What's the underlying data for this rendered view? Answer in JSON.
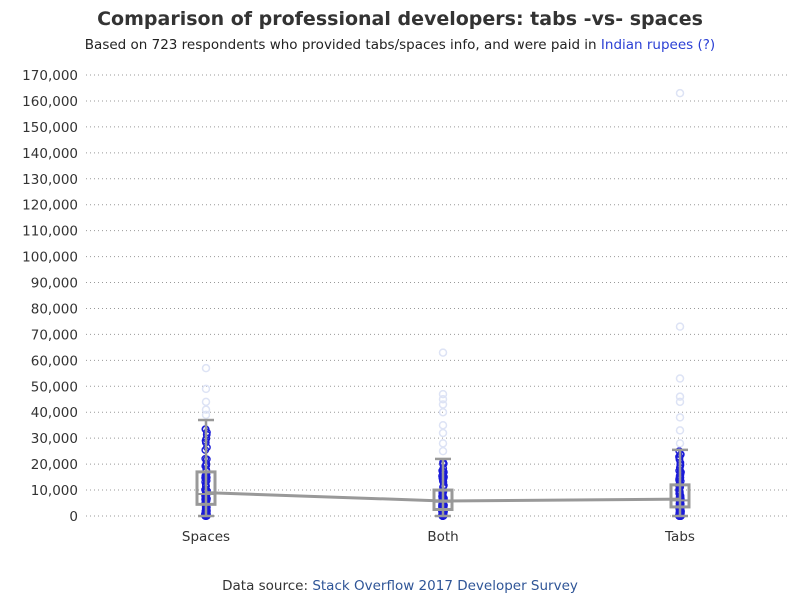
{
  "colors": {
    "points": "#1a1ad8",
    "outliers": "#dde3f5",
    "box": "#999999",
    "grid": "#999999",
    "link": "#2a3fd4"
  },
  "title": "Comparison of professional developers: tabs -vs- spaces",
  "subtitle": {
    "text": "Based on 723 respondents who provided tabs/spaces info, and were paid in",
    "link": "Indian rupees (?)"
  },
  "footer": {
    "prefix": "Data source:",
    "link": "Stack Overflow 2017 Developer Survey"
  },
  "chart_data": {
    "type": "box",
    "title": "Comparison of professional developers: tabs -vs- spaces",
    "subtitle": "Based on 723 respondents who provided tabs/spaces info, and were paid in Indian rupees (?)",
    "xlabel": "",
    "ylabel": "",
    "categories": [
      "Spaces",
      "Both",
      "Tabs"
    ],
    "ylim": [
      0,
      170000
    ],
    "ytick_step": 10000,
    "ytick_labels": [
      "0",
      "10,000",
      "20,000",
      "30,000",
      "40,000",
      "50,000",
      "60,000",
      "70,000",
      "80,000",
      "90,000",
      "100,000",
      "110,000",
      "120,000",
      "130,000",
      "140,000",
      "150,000",
      "160,000",
      "170,000"
    ],
    "grid": "horizontal dotted",
    "boxes": [
      {
        "category": "Spaces",
        "whisker_low": 0,
        "q1": 4500,
        "median": 8500,
        "q3": 17000,
        "whisker_high": 37000,
        "mean": 9000,
        "outliers": [
          39000,
          41000,
          44000,
          49000,
          57000
        ]
      },
      {
        "category": "Both",
        "whisker_low": 0,
        "q1": 2500,
        "median": 5500,
        "q3": 10000,
        "whisker_high": 22000,
        "mean": 5800,
        "outliers": [
          25000,
          28000,
          32000,
          35000,
          40000,
          43000,
          45000,
          47000,
          63000
        ]
      },
      {
        "category": "Tabs",
        "whisker_low": 0,
        "q1": 3500,
        "median": 6000,
        "q3": 12000,
        "whisker_high": 25500,
        "mean": 6500,
        "outliers": [
          28000,
          33000,
          38000,
          44000,
          46000,
          53000,
          73000,
          163000
        ]
      }
    ],
    "mean_line": [
      9000,
      5800,
      6500
    ]
  }
}
